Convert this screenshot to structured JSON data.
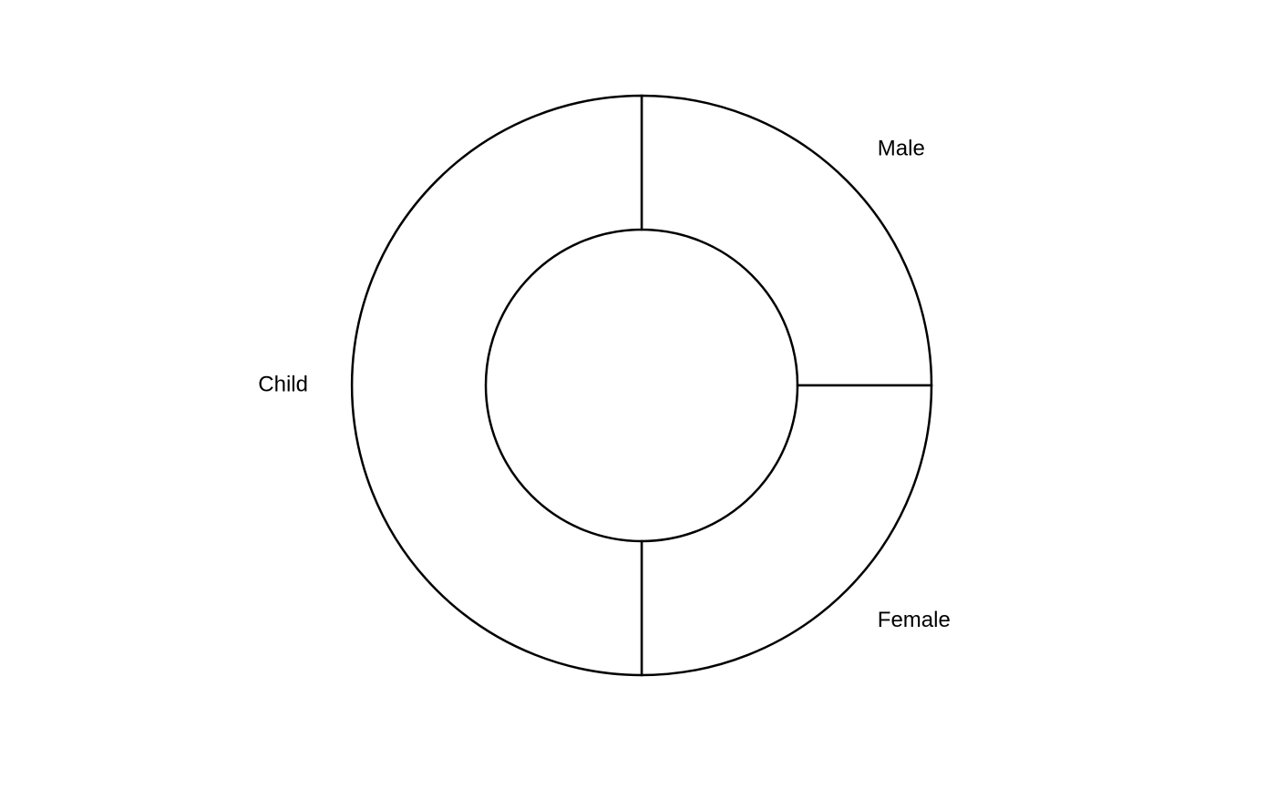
{
  "chart_data": {
    "type": "pie",
    "variant": "donut",
    "title": "",
    "categories": [
      "Male",
      "Female",
      "Child"
    ],
    "values": [
      25,
      25,
      50
    ],
    "colors": {
      "fill": "#ffffff",
      "stroke": "#000000"
    }
  }
}
